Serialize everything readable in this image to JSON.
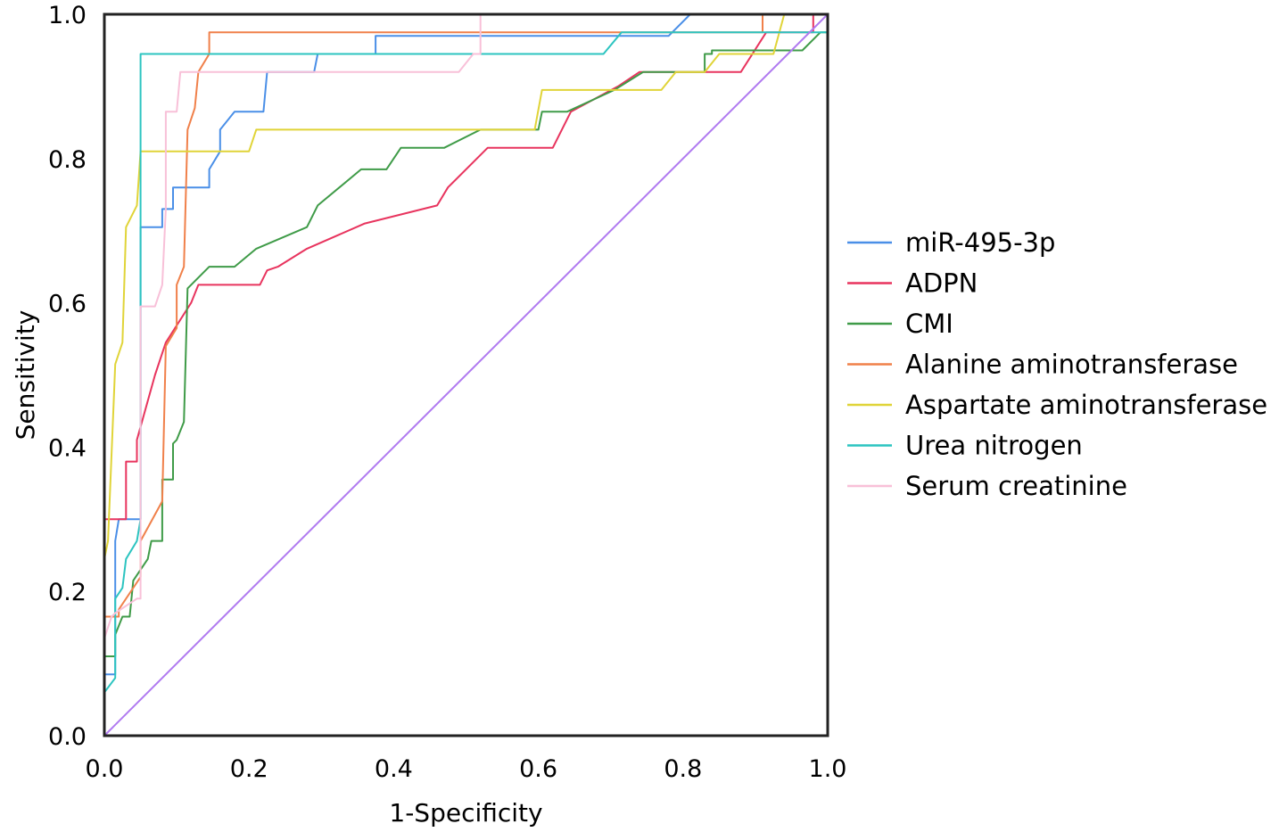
{
  "chart_data": {
    "type": "line",
    "title": "",
    "xlabel": "1-Specificity",
    "ylabel": "Sensitivity",
    "xlim": [
      0,
      1
    ],
    "ylim": [
      0,
      1
    ],
    "x_ticks": [
      "0.0",
      "0.2",
      "0.4",
      "0.6",
      "0.8",
      "1.0"
    ],
    "y_ticks": [
      "0.0",
      "0.2",
      "0.4",
      "0.6",
      "0.8",
      "1.0"
    ],
    "grid": false,
    "legend_position": "right",
    "series": [
      {
        "name": "miR-495-3p",
        "color": "#4a8fe7",
        "points": [
          [
            0,
            0
          ],
          [
            0,
            0.085
          ],
          [
            0.015,
            0.085
          ],
          [
            0.015,
            0.27
          ],
          [
            0.02,
            0.3
          ],
          [
            0.05,
            0.3
          ],
          [
            0.05,
            0.62
          ],
          [
            0.05,
            0.705
          ],
          [
            0.08,
            0.705
          ],
          [
            0.08,
            0.73
          ],
          [
            0.095,
            0.73
          ],
          [
            0.095,
            0.76
          ],
          [
            0.145,
            0.76
          ],
          [
            0.145,
            0.785
          ],
          [
            0.16,
            0.81
          ],
          [
            0.16,
            0.84
          ],
          [
            0.18,
            0.865
          ],
          [
            0.22,
            0.865
          ],
          [
            0.225,
            0.92
          ],
          [
            0.29,
            0.92
          ],
          [
            0.295,
            0.945
          ],
          [
            0.375,
            0.945
          ],
          [
            0.375,
            0.97
          ],
          [
            0.78,
            0.97
          ],
          [
            0.81,
            1.0
          ],
          [
            1.0,
            1.0
          ]
        ]
      },
      {
        "name": "ADPN",
        "color": "#e8345e",
        "points": [
          [
            0,
            0
          ],
          [
            0,
            0.3
          ],
          [
            0.03,
            0.3
          ],
          [
            0.03,
            0.38
          ],
          [
            0.045,
            0.38
          ],
          [
            0.045,
            0.41
          ],
          [
            0.07,
            0.5
          ],
          [
            0.085,
            0.545
          ],
          [
            0.12,
            0.6
          ],
          [
            0.13,
            0.625
          ],
          [
            0.215,
            0.625
          ],
          [
            0.225,
            0.645
          ],
          [
            0.24,
            0.65
          ],
          [
            0.28,
            0.675
          ],
          [
            0.36,
            0.71
          ],
          [
            0.46,
            0.735
          ],
          [
            0.475,
            0.76
          ],
          [
            0.53,
            0.815
          ],
          [
            0.62,
            0.815
          ],
          [
            0.645,
            0.865
          ],
          [
            0.71,
            0.9
          ],
          [
            0.74,
            0.92
          ],
          [
            0.88,
            0.92
          ],
          [
            0.915,
            0.975
          ],
          [
            0.98,
            0.975
          ],
          [
            0.98,
            1.0
          ],
          [
            1.0,
            1.0
          ]
        ]
      },
      {
        "name": "CMI",
        "color": "#3f9b48",
        "points": [
          [
            0,
            0
          ],
          [
            0,
            0.11
          ],
          [
            0.015,
            0.11
          ],
          [
            0.015,
            0.14
          ],
          [
            0.025,
            0.165
          ],
          [
            0.035,
            0.165
          ],
          [
            0.04,
            0.215
          ],
          [
            0.06,
            0.245
          ],
          [
            0.065,
            0.27
          ],
          [
            0.08,
            0.27
          ],
          [
            0.08,
            0.355
          ],
          [
            0.095,
            0.355
          ],
          [
            0.095,
            0.405
          ],
          [
            0.1,
            0.41
          ],
          [
            0.11,
            0.435
          ],
          [
            0.115,
            0.62
          ],
          [
            0.145,
            0.65
          ],
          [
            0.18,
            0.65
          ],
          [
            0.21,
            0.675
          ],
          [
            0.28,
            0.705
          ],
          [
            0.295,
            0.735
          ],
          [
            0.355,
            0.785
          ],
          [
            0.39,
            0.785
          ],
          [
            0.41,
            0.815
          ],
          [
            0.47,
            0.815
          ],
          [
            0.52,
            0.84
          ],
          [
            0.6,
            0.84
          ],
          [
            0.605,
            0.865
          ],
          [
            0.64,
            0.865
          ],
          [
            0.705,
            0.895
          ],
          [
            0.745,
            0.92
          ],
          [
            0.82,
            0.92
          ],
          [
            0.83,
            0.92
          ],
          [
            0.83,
            0.945
          ],
          [
            0.84,
            0.945
          ],
          [
            0.84,
            0.95
          ],
          [
            0.94,
            0.95
          ],
          [
            0.965,
            0.95
          ],
          [
            0.99,
            0.975
          ],
          [
            1.0,
            0.975
          ]
        ]
      },
      {
        "name": "Alanine aminotransferase",
        "color": "#f0804a",
        "points": [
          [
            0,
            0
          ],
          [
            0,
            0.165
          ],
          [
            0.02,
            0.165
          ],
          [
            0.02,
            0.175
          ],
          [
            0.05,
            0.22
          ],
          [
            0.05,
            0.27
          ],
          [
            0.08,
            0.325
          ],
          [
            0.085,
            0.54
          ],
          [
            0.1,
            0.565
          ],
          [
            0.1,
            0.625
          ],
          [
            0.11,
            0.65
          ],
          [
            0.115,
            0.84
          ],
          [
            0.125,
            0.87
          ],
          [
            0.13,
            0.92
          ],
          [
            0.145,
            0.945
          ],
          [
            0.145,
            0.975
          ],
          [
            0.91,
            0.975
          ],
          [
            0.91,
            1.0
          ],
          [
            1.0,
            1.0
          ]
        ]
      },
      {
        "name": "Aspartate aminotransferase",
        "color": "#e0d438",
        "points": [
          [
            0,
            0
          ],
          [
            0,
            0.245
          ],
          [
            0.005,
            0.27
          ],
          [
            0.015,
            0.515
          ],
          [
            0.025,
            0.545
          ],
          [
            0.03,
            0.705
          ],
          [
            0.045,
            0.735
          ],
          [
            0.05,
            0.81
          ],
          [
            0.2,
            0.81
          ],
          [
            0.21,
            0.84
          ],
          [
            0.595,
            0.84
          ],
          [
            0.605,
            0.895
          ],
          [
            0.77,
            0.895
          ],
          [
            0.79,
            0.92
          ],
          [
            0.83,
            0.92
          ],
          [
            0.85,
            0.945
          ],
          [
            0.925,
            0.945
          ],
          [
            0.94,
            1.0
          ],
          [
            1.0,
            1.0
          ]
        ]
      },
      {
        "name": "Urea nitrogen",
        "color": "#2cc4c0",
        "points": [
          [
            0,
            0
          ],
          [
            0,
            0.06
          ],
          [
            0.015,
            0.08
          ],
          [
            0.015,
            0.19
          ],
          [
            0.025,
            0.205
          ],
          [
            0.03,
            0.245
          ],
          [
            0.045,
            0.27
          ],
          [
            0.05,
            0.3
          ],
          [
            0.05,
            0.945
          ],
          [
            0.69,
            0.945
          ],
          [
            0.715,
            0.975
          ],
          [
            1.0,
            0.975
          ]
        ]
      },
      {
        "name": "Serum creatinine",
        "color": "#f8c0d8",
        "points": [
          [
            0,
            0
          ],
          [
            0,
            0.135
          ],
          [
            0.01,
            0.165
          ],
          [
            0.015,
            0.17
          ],
          [
            0.045,
            0.19
          ],
          [
            0.05,
            0.19
          ],
          [
            0.05,
            0.595
          ],
          [
            0.07,
            0.595
          ],
          [
            0.08,
            0.625
          ],
          [
            0.085,
            0.73
          ],
          [
            0.085,
            0.865
          ],
          [
            0.1,
            0.865
          ],
          [
            0.105,
            0.92
          ],
          [
            0.49,
            0.92
          ],
          [
            0.51,
            0.945
          ],
          [
            0.52,
            0.945
          ],
          [
            0.52,
            1.0
          ],
          [
            1.0,
            1.0
          ]
        ]
      },
      {
        "name": "",
        "color": "#b07af0",
        "points": [
          [
            0,
            0
          ],
          [
            1,
            1
          ]
        ]
      }
    ]
  }
}
